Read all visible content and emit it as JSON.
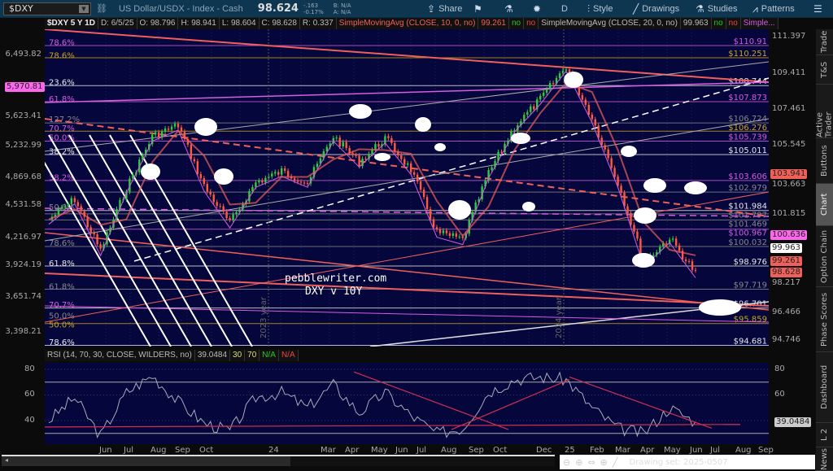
{
  "topbar": {
    "symbol": "$DXY",
    "description": "US Dollar/USDX - Index - Cash",
    "last": "98.624",
    "change": "-.163",
    "change_pct": "-0.17%",
    "bid": "B: N/A",
    "ask": "A: N/A",
    "buttons": [
      {
        "label": "Share",
        "icon": "share-icon"
      },
      {
        "label": "",
        "icon": "flag-icon"
      },
      {
        "label": "",
        "icon": "flask-icon"
      },
      {
        "label": "",
        "icon": "gear-icon"
      },
      {
        "label": "D",
        "icon": ""
      },
      {
        "label": "Style",
        "icon": "style-icon"
      },
      {
        "label": "Drawings",
        "icon": "pencil-icon"
      },
      {
        "label": "Studies",
        "icon": "flask-icon"
      },
      {
        "label": "Patterns",
        "icon": "patterns-icon"
      },
      {
        "label": "",
        "icon": "menu-icon"
      }
    ]
  },
  "infobar": {
    "title": "$DXY 5 Y 1D",
    "date": "D: 6/5/25",
    "open": "O: 98.796",
    "high": "H: 98.941",
    "low": "L: 98.604",
    "close": "C: 98.628",
    "range": "R: 0.337",
    "sma10": "SimpleMovingAvg (CLOSE, 10, 0, no)",
    "sma10_val": "99.261",
    "sma20": "SimpleMovingAvg (CLOSE, 20, 0, no)",
    "sma20_val": "99.963",
    "no": "no",
    "sma_more": "Simple..."
  },
  "left_axis": [
    "6,493.82",
    "5,623.41",
    "5,232.99",
    "4,869.68",
    "4,531.58",
    "4,216.97",
    "3,924.19",
    "3,651.74",
    "3,398.21"
  ],
  "left_badge": "5,970.81",
  "right_axis": [
    "111.397",
    "109.411",
    "107.461",
    "105.545",
    "103.663",
    "101.815",
    "98.217",
    "96.466",
    "94.746"
  ],
  "right_badges": [
    {
      "v": "103.941",
      "color": "#f0605a",
      "price": 103.941
    },
    {
      "v": "100.636",
      "color": "#ff66ee",
      "price": 100.636
    },
    {
      "v": "99.963",
      "color": "#ffffff",
      "price": 99.963
    },
    {
      "v": "99.261",
      "color": "#f0605a",
      "price": 99.261
    },
    {
      "v": "98.628",
      "color": "#f0605a",
      "price": 98.628
    }
  ],
  "levels": [
    {
      "label": "$110.91",
      "price": 110.91,
      "color": "#d65ce0"
    },
    {
      "label": "$110.251",
      "price": 110.251,
      "color": "#c8a420"
    },
    {
      "label": "$108.744",
      "price": 108.744,
      "color": "#e8e8e8"
    },
    {
      "label": "$107.873",
      "price": 107.873,
      "color": "#d65ce0"
    },
    {
      "label": "$106.724",
      "price": 106.724,
      "color": "#888888"
    },
    {
      "label": "$106.276",
      "price": 106.276,
      "color": "#c8a420"
    },
    {
      "label": "$105.739",
      "price": 105.739,
      "color": "#d65ce0"
    },
    {
      "label": "$105.011",
      "price": 105.011,
      "color": "#e8e8e8"
    },
    {
      "label": "$103.606",
      "price": 103.606,
      "color": "#d65ce0"
    },
    {
      "label": "$102.979",
      "price": 102.979,
      "color": "#888888"
    },
    {
      "label": "$101.984",
      "price": 101.984,
      "color": "#e8e8e8"
    },
    {
      "label": "$101.797",
      "price": 101.797,
      "color": "#888888"
    },
    {
      "label": "$101.469",
      "price": 101.469,
      "color": "#888888"
    },
    {
      "label": "$100.967",
      "price": 100.967,
      "color": "#d65ce0"
    },
    {
      "label": "$100.032",
      "price": 100.032,
      "color": "#888888"
    },
    {
      "label": "$98.976",
      "price": 98.976,
      "color": "#e8e8e8"
    },
    {
      "label": "$97.719",
      "price": 97.719,
      "color": "#888888"
    },
    {
      "label": "$96.701",
      "price": 96.701,
      "color": "#e8e8e8"
    },
    {
      "label": "$95.859",
      "price": 95.859,
      "color": "#c8a420"
    },
    {
      "label": "$94.681",
      "price": 94.681,
      "color": "#e8e8e8"
    }
  ],
  "fib_labels": [
    {
      "t": "78.6%",
      "c": "#d65ce0",
      "p": 111.1
    },
    {
      "t": "78.6%",
      "c": "#c8a420",
      "p": 110.4
    },
    {
      "t": "23.6%",
      "c": "#e8e8e8",
      "p": 108.95
    },
    {
      "t": "61.8%",
      "c": "#d65ce0",
      "p": 108.05
    },
    {
      "t": "127.2%",
      "c": "#888888",
      "p": 106.95
    },
    {
      "t": "70.7%",
      "c": "#d65ce0",
      "p": 106.5
    },
    {
      "t": "50.0%",
      "c": "#d65ce0",
      "p": 105.95
    },
    {
      "t": "38.2%",
      "c": "#e8e8e8",
      "p": 105.2
    },
    {
      "t": "38.2%",
      "c": "#d65ce0",
      "p": 103.8
    },
    {
      "t": "50.0%",
      "c": "#888888",
      "p": 102.2
    },
    {
      "t": "78.6%",
      "c": "#888888",
      "p": 100.25
    },
    {
      "t": "61.8%",
      "c": "#e8e8e8",
      "p": 99.15
    },
    {
      "t": "61.8%",
      "c": "#888888",
      "p": 97.9
    },
    {
      "t": "70.7%",
      "c": "#d65ce0",
      "p": 96.9
    },
    {
      "t": "50.0%",
      "c": "#888888",
      "p": 96.3
    },
    {
      "t": "50.0%",
      "c": "#c8a420",
      "p": 96.05
    },
    {
      "t": "78.6%",
      "c": "#e8e8e8",
      "p": 94.85
    }
  ],
  "watermark": {
    "line1": "pebblewriter.com",
    "line2": "DXY v 10Y"
  },
  "year_markers": [
    "2023 year",
    "2024 year"
  ],
  "rsi": {
    "label": "RSI (14, 70, 30, CLOSE, WILDERS, no)",
    "value": "39.0484",
    "ob": "30",
    "os": "70",
    "na1": "N/A",
    "na2": "N/A",
    "axis": [
      "80",
      "60",
      "40"
    ]
  },
  "x_axis": [
    "Jun",
    "Jul",
    "Aug",
    "Sep",
    "Oct",
    "24",
    "Mar",
    "Apr",
    "May",
    "Jun",
    "Jul",
    "Aug",
    "Sep",
    "Oct",
    "Dec",
    "25",
    "Feb",
    "Mar",
    "Apr",
    "May",
    "Jun",
    "Jul",
    "Aug",
    "Sep"
  ],
  "drawing_set": "Drawing set: 2025-0507",
  "side_tabs": [
    "Trade",
    "T&S",
    "Active Trader",
    "Buttons",
    "Chart",
    "Option Chain",
    "Phase Scores",
    "Dashboard",
    "L 2",
    "News"
  ],
  "chart_data": {
    "type": "candlestick",
    "title": "$DXY 5 Y 1D",
    "ylim": [
      94.746,
      111.397
    ],
    "x": [
      "2023-05",
      "2023-06",
      "2023-07",
      "2023-08",
      "2023-09",
      "2023-10",
      "2023-11",
      "2023-12",
      "2024-01",
      "2024-02",
      "2024-03",
      "2024-04",
      "2024-05",
      "2024-06",
      "2024-07",
      "2024-08",
      "2024-09",
      "2024-10",
      "2024-11",
      "2024-12",
      "2025-01",
      "2025-02",
      "2025-03",
      "2025-04",
      "2025-05",
      "2025-06"
    ],
    "close": [
      101.5,
      102.6,
      99.8,
      103.2,
      106.0,
      106.6,
      103.3,
      101.3,
      103.5,
      104.1,
      103.5,
      106.0,
      104.6,
      105.9,
      104.2,
      100.8,
      100.4,
      104.0,
      106.5,
      108.0,
      109.8,
      107.0,
      103.5,
      99.2,
      100.5,
      98.6
    ],
    "rsi": [
      40,
      58,
      28,
      62,
      75,
      55,
      38,
      32,
      58,
      62,
      50,
      68,
      46,
      62,
      44,
      30,
      34,
      62,
      72,
      74,
      72,
      50,
      34,
      30,
      50,
      39
    ]
  }
}
